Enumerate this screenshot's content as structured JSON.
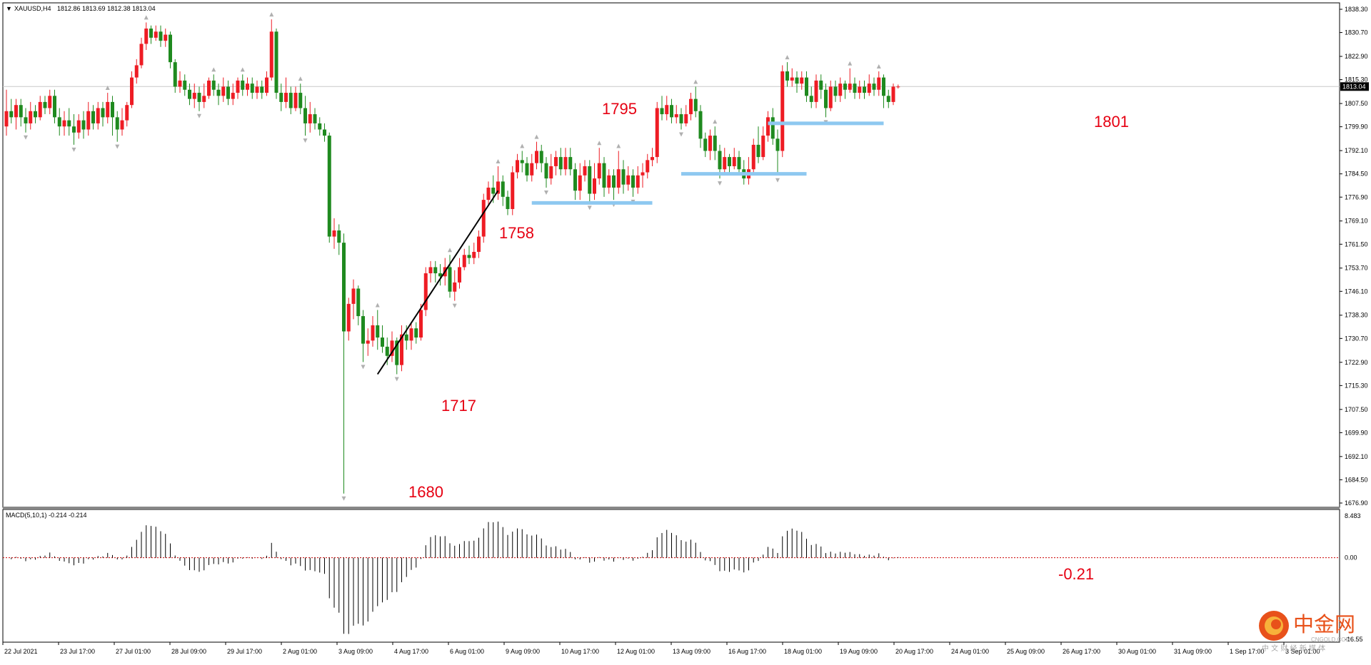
{
  "window": {
    "header_arrow": "▼",
    "symbol": "XAUUSD,H4",
    "ohlc": "1812.86 1813.69 1812.38 1813.04"
  },
  "colors": {
    "bull": "#ee1c24",
    "bear": "#1f8a1f",
    "annotation": "#e60012",
    "support_line": "#8ec8f0",
    "trend_line": "#000000",
    "macd_zero": "#cc0000",
    "fractal": "#b0b0b0"
  },
  "price_panel": {
    "price_ticks": [
      "1838.30",
      "1830.70",
      "1822.90",
      "1815.30",
      "1807.50",
      "1799.90",
      "1792.10",
      "1784.50",
      "1776.90",
      "1769.10",
      "1761.50",
      "1753.70",
      "1746.10",
      "1738.30",
      "1730.70",
      "1722.90",
      "1715.30",
      "1707.50",
      "1699.90",
      "1692.10",
      "1684.50",
      "1676.90"
    ],
    "current_price_label": "1813.04"
  },
  "macd_panel": {
    "label": "MACD(5,10,1) -0.214 -0.214",
    "ticks": [
      "8.483",
      "0.00",
      "-16.55"
    ]
  },
  "annotations": {
    "low_1680": "1680",
    "low_1717": "1717",
    "level_1758": "1758",
    "high_1795": "1795",
    "level_1801": "1801",
    "macd_value": "-0.21"
  },
  "x_labels": [
    "22 Jul 2021",
    "23 Jul 17:00",
    "27 Jul 01:00",
    "28 Jul 09:00",
    "29 Jul 17:00",
    "2 Aug 01:00",
    "3 Aug 09:00",
    "4 Aug 17:00",
    "6 Aug 01:00",
    "9 Aug 09:00",
    "10 Aug 17:00",
    "12 Aug 01:00",
    "13 Aug 09:00",
    "16 Aug 17:00",
    "18 Aug 01:00",
    "19 Aug 09:00",
    "20 Aug 17:00",
    "24 Aug 01:00",
    "25 Aug 09:00",
    "26 Aug 17:00",
    "30 Aug 01:00",
    "31 Aug 09:00",
    "1 Sep 17:00",
    "3 Sep 01:00"
  ],
  "logo": {
    "main": "中金网",
    "sub_en": "CNGOLD.COM",
    "sub_cn": "中 文 财 经 新 媒 体"
  },
  "chart_data": {
    "type": "candlestick",
    "symbol": "XAUUSD",
    "timeframe": "H4",
    "ylim": [
      1676.9,
      1838.3
    ],
    "key_levels": {
      "spike_low": 1680,
      "swing_low": 1717,
      "level_1758": 1758,
      "swing_high": 1795,
      "support_1801": 1801,
      "support_1": 1775,
      "support_2": 1784.5
    },
    "current_price": 1813.04,
    "macd": {
      "params": "5,10,1",
      "value": -0.214,
      "signal": -0.214,
      "ylim": [
        -16.55,
        8.483
      ]
    },
    "candles": [
      [
        1800,
        1805,
        1812,
        1797
      ],
      [
        1805,
        1803,
        1809,
        1801
      ],
      [
        1803,
        1807,
        1809,
        1799
      ],
      [
        1807,
        1803,
        1809,
        1800
      ],
      [
        1803,
        1801,
        1806,
        1798
      ],
      [
        1801,
        1805,
        1808,
        1799
      ],
      [
        1805,
        1803,
        1807,
        1801
      ],
      [
        1803,
        1808,
        1810,
        1802
      ],
      [
        1808,
        1806,
        1810,
        1804
      ],
      [
        1806,
        1810,
        1812,
        1804
      ],
      [
        1810,
        1803,
        1812,
        1801
      ],
      [
        1803,
        1800,
        1806,
        1797
      ],
      [
        1800,
        1802,
        1805,
        1797
      ],
      [
        1802,
        1800,
        1806,
        1797
      ],
      [
        1800,
        1798,
        1804,
        1794
      ],
      [
        1798,
        1802,
        1804,
        1796
      ],
      [
        1802,
        1799,
        1805,
        1796
      ],
      [
        1799,
        1805,
        1808,
        1797
      ],
      [
        1805,
        1801,
        1807,
        1799
      ],
      [
        1801,
        1806,
        1808,
        1799
      ],
      [
        1806,
        1803,
        1808,
        1800
      ],
      [
        1803,
        1808,
        1811,
        1801
      ],
      [
        1808,
        1803,
        1810,
        1797
      ],
      [
        1803,
        1799,
        1805,
        1795
      ],
      [
        1799,
        1802,
        1806,
        1797
      ],
      [
        1802,
        1807,
        1808,
        1800
      ],
      [
        1807,
        1816,
        1818,
        1806
      ],
      [
        1816,
        1820,
        1822,
        1814
      ],
      [
        1820,
        1827,
        1829,
        1819
      ],
      [
        1827,
        1832,
        1834,
        1825
      ],
      [
        1832,
        1829,
        1833,
        1827
      ],
      [
        1829,
        1831,
        1833,
        1828
      ],
      [
        1831,
        1828,
        1833,
        1826
      ],
      [
        1828,
        1830,
        1832,
        1826
      ],
      [
        1830,
        1821,
        1831,
        1819
      ],
      [
        1821,
        1813,
        1822,
        1811
      ],
      [
        1813,
        1815,
        1818,
        1811
      ],
      [
        1815,
        1812,
        1817,
        1810
      ],
      [
        1812,
        1809,
        1814,
        1807
      ],
      [
        1809,
        1811,
        1814,
        1806
      ],
      [
        1811,
        1808,
        1813,
        1805
      ],
      [
        1808,
        1810,
        1814,
        1806
      ],
      [
        1810,
        1815,
        1816,
        1809
      ],
      [
        1815,
        1812,
        1817,
        1810
      ],
      [
        1812,
        1810,
        1814,
        1807
      ],
      [
        1810,
        1813,
        1816,
        1808
      ],
      [
        1813,
        1809,
        1815,
        1807
      ],
      [
        1809,
        1811,
        1814,
        1807
      ],
      [
        1811,
        1815,
        1816,
        1809
      ],
      [
        1815,
        1812,
        1817,
        1810
      ],
      [
        1812,
        1814,
        1816,
        1810
      ],
      [
        1814,
        1811,
        1816,
        1809
      ],
      [
        1811,
        1813,
        1815,
        1809
      ],
      [
        1813,
        1811,
        1815,
        1809
      ],
      [
        1811,
        1816,
        1818,
        1810
      ],
      [
        1816,
        1831,
        1835,
        1815
      ],
      [
        1831,
        1811,
        1832,
        1809
      ],
      [
        1811,
        1808,
        1814,
        1805
      ],
      [
        1808,
        1811,
        1816,
        1806
      ],
      [
        1811,
        1806,
        1813,
        1804
      ],
      [
        1806,
        1811,
        1813,
        1805
      ],
      [
        1811,
        1806,
        1814,
        1804
      ],
      [
        1806,
        1801,
        1810,
        1797
      ],
      [
        1801,
        1804,
        1808,
        1798
      ],
      [
        1804,
        1801,
        1806,
        1799
      ],
      [
        1801,
        1799,
        1803,
        1797
      ],
      [
        1799,
        1797,
        1801,
        1795
      ],
      [
        1797,
        1764,
        1798,
        1762
      ],
      [
        1764,
        1766,
        1770,
        1760
      ],
      [
        1766,
        1762,
        1768,
        1758
      ],
      [
        1762,
        1733,
        1765,
        1680
      ],
      [
        1733,
        1742,
        1744,
        1730
      ],
      [
        1742,
        1747,
        1750,
        1737
      ],
      [
        1747,
        1738,
        1748,
        1735
      ],
      [
        1738,
        1729,
        1740,
        1723
      ],
      [
        1729,
        1730,
        1734,
        1725
      ],
      [
        1730,
        1735,
        1738,
        1728
      ],
      [
        1735,
        1731,
        1740,
        1727
      ],
      [
        1731,
        1728,
        1735,
        1726
      ],
      [
        1728,
        1725,
        1731,
        1722
      ],
      [
        1725,
        1730,
        1733,
        1723
      ],
      [
        1730,
        1722,
        1731,
        1719
      ],
      [
        1722,
        1732,
        1735,
        1720
      ],
      [
        1732,
        1730,
        1735,
        1727
      ],
      [
        1730,
        1734,
        1736,
        1727
      ],
      [
        1734,
        1731,
        1736,
        1729
      ],
      [
        1731,
        1740,
        1742,
        1730
      ],
      [
        1740,
        1752,
        1754,
        1738
      ],
      [
        1752,
        1754,
        1756,
        1749
      ],
      [
        1754,
        1752,
        1756,
        1749
      ],
      [
        1752,
        1751,
        1755,
        1748
      ],
      [
        1751,
        1754,
        1757,
        1748
      ],
      [
        1754,
        1746,
        1758,
        1744
      ],
      [
        1746,
        1749,
        1753,
        1743
      ],
      [
        1749,
        1754,
        1757,
        1747
      ],
      [
        1754,
        1758,
        1760,
        1753
      ],
      [
        1758,
        1757,
        1761,
        1755
      ],
      [
        1757,
        1759,
        1762,
        1755
      ],
      [
        1759,
        1764,
        1766,
        1757
      ],
      [
        1764,
        1776,
        1778,
        1762
      ],
      [
        1776,
        1780,
        1782,
        1774
      ],
      [
        1780,
        1778,
        1784,
        1775
      ],
      [
        1778,
        1782,
        1787,
        1776
      ],
      [
        1782,
        1777,
        1784,
        1774
      ],
      [
        1777,
        1773,
        1779,
        1771
      ],
      [
        1773,
        1785,
        1787,
        1771
      ],
      [
        1785,
        1789,
        1791,
        1783
      ],
      [
        1789,
        1788,
        1792,
        1785
      ],
      [
        1788,
        1784,
        1790,
        1782
      ],
      [
        1784,
        1788,
        1791,
        1782
      ],
      [
        1788,
        1792,
        1795,
        1786
      ],
      [
        1792,
        1788,
        1794,
        1785
      ],
      [
        1788,
        1783,
        1790,
        1780
      ],
      [
        1783,
        1787,
        1791,
        1781
      ],
      [
        1787,
        1790,
        1792,
        1784
      ],
      [
        1790,
        1786,
        1793,
        1784
      ],
      [
        1786,
        1790,
        1793,
        1784
      ],
      [
        1790,
        1786,
        1793,
        1784
      ],
      [
        1786,
        1779,
        1788,
        1776
      ],
      [
        1779,
        1784,
        1788,
        1776
      ],
      [
        1784,
        1787,
        1789,
        1782
      ],
      [
        1787,
        1778,
        1789,
        1775
      ],
      [
        1778,
        1783,
        1788,
        1776
      ],
      [
        1783,
        1788,
        1793,
        1781
      ],
      [
        1788,
        1780,
        1790,
        1777
      ],
      [
        1780,
        1784,
        1786,
        1778
      ],
      [
        1784,
        1780,
        1786,
        1776
      ],
      [
        1780,
        1786,
        1792,
        1778
      ],
      [
        1786,
        1781,
        1789,
        1778
      ],
      [
        1781,
        1784,
        1787,
        1779
      ],
      [
        1784,
        1780,
        1786,
        1777
      ],
      [
        1780,
        1784,
        1787,
        1778
      ],
      [
        1784,
        1785,
        1788,
        1780
      ],
      [
        1785,
        1789,
        1791,
        1783
      ],
      [
        1789,
        1790,
        1793,
        1787
      ],
      [
        1790,
        1806,
        1808,
        1788
      ],
      [
        1806,
        1804,
        1810,
        1802
      ],
      [
        1804,
        1807,
        1810,
        1802
      ],
      [
        1807,
        1803,
        1809,
        1801
      ],
      [
        1803,
        1804,
        1807,
        1801
      ],
      [
        1804,
        1801,
        1806,
        1799
      ],
      [
        1801,
        1804,
        1807,
        1800
      ],
      [
        1804,
        1809,
        1811,
        1802
      ],
      [
        1809,
        1805,
        1813,
        1803
      ],
      [
        1805,
        1796,
        1807,
        1793
      ],
      [
        1796,
        1792,
        1798,
        1790
      ],
      [
        1792,
        1797,
        1799,
        1789
      ],
      [
        1797,
        1792,
        1800,
        1789
      ],
      [
        1792,
        1786,
        1794,
        1783
      ],
      [
        1786,
        1790,
        1793,
        1784
      ],
      [
        1790,
        1787,
        1791,
        1785
      ],
      [
        1787,
        1790,
        1793,
        1786
      ],
      [
        1790,
        1786,
        1792,
        1784
      ],
      [
        1786,
        1783,
        1789,
        1781
      ],
      [
        1783,
        1786,
        1790,
        1781
      ],
      [
        1786,
        1794,
        1796,
        1784
      ],
      [
        1794,
        1790,
        1800,
        1788
      ],
      [
        1790,
        1797,
        1800,
        1789
      ],
      [
        1797,
        1803,
        1805,
        1795
      ],
      [
        1803,
        1796,
        1806,
        1794
      ],
      [
        1796,
        1792,
        1799,
        1784
      ],
      [
        1792,
        1818,
        1820,
        1790
      ],
      [
        1818,
        1815,
        1821,
        1813
      ],
      [
        1815,
        1816,
        1819,
        1813
      ],
      [
        1816,
        1814,
        1818,
        1811
      ],
      [
        1814,
        1816,
        1818,
        1812
      ],
      [
        1816,
        1810,
        1818,
        1808
      ],
      [
        1810,
        1808,
        1813,
        1806
      ],
      [
        1808,
        1815,
        1817,
        1806
      ],
      [
        1815,
        1812,
        1817,
        1809
      ],
      [
        1812,
        1806,
        1814,
        1803
      ],
      [
        1806,
        1813,
        1815,
        1805
      ],
      [
        1813,
        1810,
        1815,
        1808
      ],
      [
        1810,
        1814,
        1816,
        1808
      ],
      [
        1814,
        1812,
        1815,
        1809
      ],
      [
        1812,
        1814,
        1819,
        1811
      ],
      [
        1814,
        1811,
        1816,
        1809
      ],
      [
        1811,
        1813,
        1815,
        1809
      ],
      [
        1813,
        1811,
        1815,
        1809
      ],
      [
        1811,
        1814,
        1817,
        1810
      ],
      [
        1814,
        1812,
        1816,
        1810
      ],
      [
        1812,
        1816,
        1818,
        1810
      ],
      [
        1816,
        1810,
        1817,
        1806
      ],
      [
        1810,
        1808,
        1812,
        1806
      ],
      [
        1808,
        1813,
        1814,
        1807
      ],
      [
        1812.86,
        1813.04,
        1813.69,
        1812.38
      ]
    ]
  }
}
